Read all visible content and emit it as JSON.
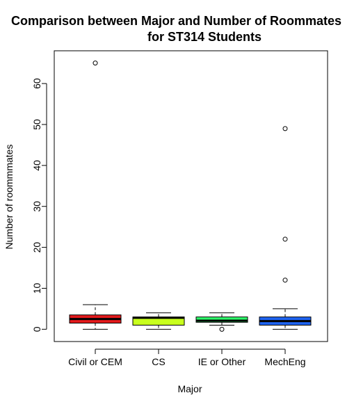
{
  "chart_data": {
    "type": "boxplot",
    "title": "Comparison between Major and Number of Roommates",
    "subtitle": "for ST314 Students",
    "xlabel": "Major",
    "ylabel": "Number of roommmates",
    "ylim": [
      -3,
      68
    ],
    "yticks": [
      0,
      10,
      20,
      30,
      40,
      50,
      60
    ],
    "categories": [
      "Civil or CEM",
      "CS",
      "IE or Other",
      "MechEng"
    ],
    "boxes": [
      {
        "category": "Civil or CEM",
        "color": "#e31a1c",
        "lower_whisker": 0,
        "q1": 1.5,
        "median": 2.5,
        "q3": 3.5,
        "upper_whisker": 6,
        "outliers": [
          65
        ]
      },
      {
        "category": "CS",
        "color": "#c8ff1e",
        "lower_whisker": 0,
        "q1": 1,
        "median": 2.8,
        "q3": 3,
        "upper_whisker": 4,
        "outliers": []
      },
      {
        "category": "IE or Other",
        "color": "#2eff6a",
        "lower_whisker": 1,
        "q1": 1.7,
        "median": 2.1,
        "q3": 3,
        "upper_whisker": 4,
        "outliers": [
          0
        ]
      },
      {
        "category": "MechEng",
        "color": "#1e63f0",
        "lower_whisker": 0,
        "q1": 1,
        "median": 2,
        "q3": 3,
        "upper_whisker": 5,
        "outliers": [
          12,
          22,
          49
        ]
      }
    ]
  }
}
